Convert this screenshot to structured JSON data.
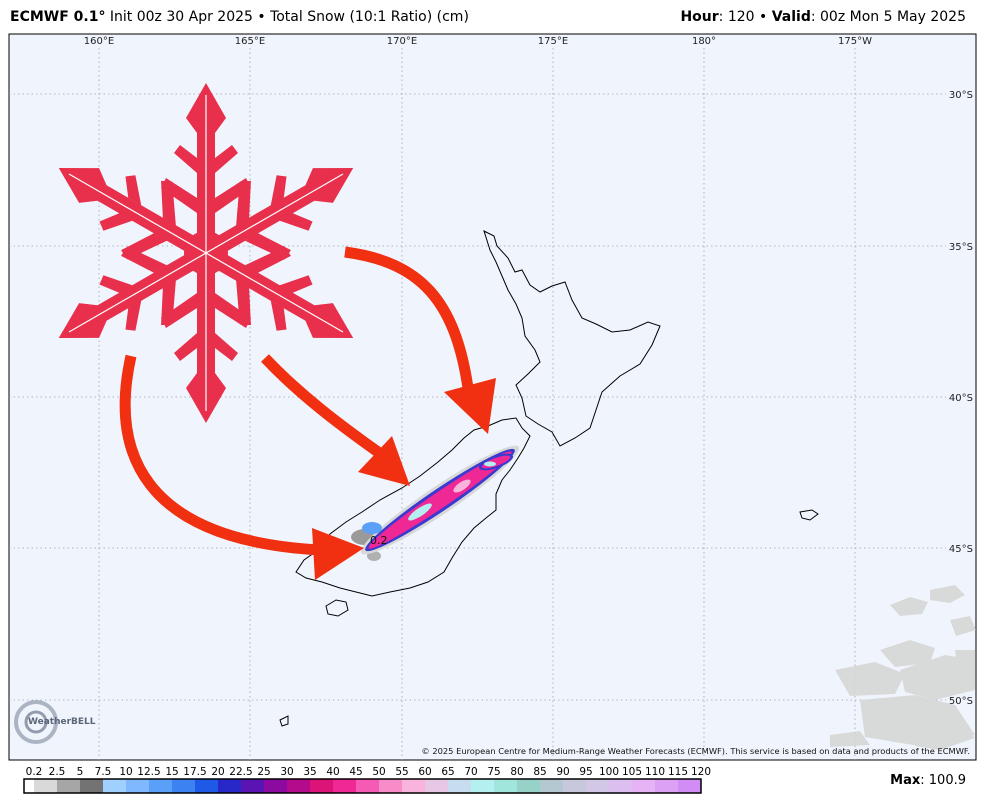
{
  "header": {
    "model": "ECMWF 0.1°",
    "run": "Init 00z 30 Apr 2025 • Total Snow (10:1 Ratio) (cm)",
    "hour_label": "Hour",
    "hour_value": ": 120 • ",
    "valid_label": "Valid",
    "valid_value": ": 00z Mon 5 May 2025"
  },
  "map": {
    "lon_labels": [
      "160°E",
      "165°E",
      "170°E",
      "175°E",
      "180°",
      "175°W"
    ],
    "lat_labels": [
      "30°S",
      "35°S",
      "40°S",
      "45°S",
      "50°S"
    ],
    "contour_label": "0.2",
    "copyright": "© 2025 European Centre for Medium-Range Weather Forecasts (ECMWF). This service is based on data and products of the ECMWF.",
    "logo": "WeatherBELL"
  },
  "legend": {
    "labels": [
      "0.2",
      "2.5",
      "5",
      "7.5",
      "10",
      "12.5",
      "15",
      "17.5",
      "20",
      "22.5",
      "25",
      "30",
      "35",
      "40",
      "45",
      "50",
      "55",
      "60",
      "65",
      "70",
      "75",
      "80",
      "85",
      "90",
      "95",
      "100",
      "105",
      "110",
      "115",
      "120"
    ],
    "colors": [
      "#ffffff",
      "#d9d9d9",
      "#a6a6a6",
      "#737373",
      "#a0d0ff",
      "#80b8ff",
      "#5aa0f8",
      "#3c82f0",
      "#1e5ae6",
      "#2828c8",
      "#5a14b4",
      "#8c0aa0",
      "#b40a8c",
      "#dc1478",
      "#f02896",
      "#f55ab4",
      "#f78cc8",
      "#f8b4dc",
      "#e6c8e6",
      "#c8dcf0",
      "#b4f0f0",
      "#a0e6dc",
      "#96d2c8",
      "#b4c8d2",
      "#c8c8dc",
      "#d2c8e6",
      "#dcbef0",
      "#e6b4f5",
      "#dca0f5",
      "#d28cf5"
    ],
    "max_label": "Max",
    "max_value": ": 100.9"
  }
}
